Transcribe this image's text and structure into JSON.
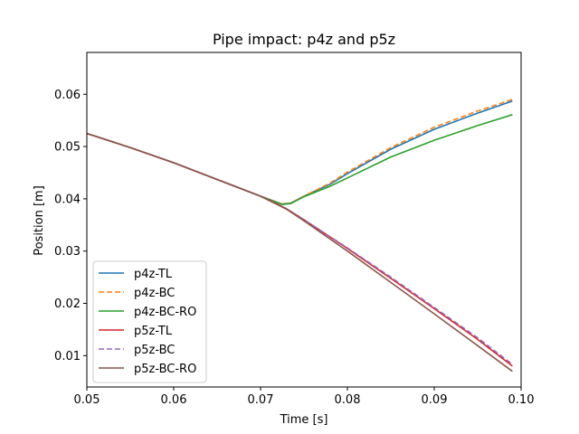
{
  "chart_data": {
    "type": "line",
    "title": "Pipe impact: p4z and p5z",
    "xlabel": "Time [s]",
    "ylabel": "Position [m]",
    "xlim": [
      0.05,
      0.1
    ],
    "ylim": [
      0.004,
      0.068
    ],
    "xticks": [
      0.05,
      0.06,
      0.07,
      0.08,
      0.09,
      0.1
    ],
    "xtick_labels": [
      "0.05",
      "0.06",
      "0.07",
      "0.08",
      "0.09",
      "0.10"
    ],
    "yticks": [
      0.01,
      0.02,
      0.03,
      0.04,
      0.05,
      0.06
    ],
    "ytick_labels": [
      "0.01",
      "0.02",
      "0.03",
      "0.04",
      "0.05",
      "0.06"
    ],
    "grid": false,
    "legend_position": "lower-left",
    "series": [
      {
        "name": "p4z-TL",
        "color": "#1f77b4",
        "dash": "solid",
        "x": [
          0.05,
          0.055,
          0.06,
          0.065,
          0.07,
          0.0725,
          0.0735,
          0.075,
          0.078,
          0.08,
          0.085,
          0.09,
          0.095,
          0.099
        ],
        "y": [
          0.0525,
          0.0498,
          0.0469,
          0.0437,
          0.0405,
          0.039,
          0.0392,
          0.0405,
          0.0428,
          0.0448,
          0.0495,
          0.0533,
          0.0564,
          0.0587
        ]
      },
      {
        "name": "p4z-BC",
        "color": "#ff7f0e",
        "dash": "dashed",
        "x": [
          0.05,
          0.055,
          0.06,
          0.065,
          0.07,
          0.0725,
          0.0735,
          0.075,
          0.078,
          0.08,
          0.085,
          0.09,
          0.095,
          0.099
        ],
        "y": [
          0.0525,
          0.0498,
          0.0469,
          0.0437,
          0.0405,
          0.039,
          0.0392,
          0.0405,
          0.043,
          0.0451,
          0.0498,
          0.0537,
          0.0568,
          0.059
        ]
      },
      {
        "name": "p4z-BC-RO",
        "color": "#2ca02c",
        "dash": "solid",
        "x": [
          0.05,
          0.055,
          0.06,
          0.065,
          0.07,
          0.0725,
          0.0735,
          0.075,
          0.078,
          0.08,
          0.085,
          0.09,
          0.095,
          0.099
        ],
        "y": [
          0.0525,
          0.0498,
          0.0469,
          0.0437,
          0.0405,
          0.0389,
          0.0391,
          0.0404,
          0.0424,
          0.044,
          0.048,
          0.0512,
          0.054,
          0.0561
        ]
      },
      {
        "name": "p5z-TL",
        "color": "#d62728",
        "dash": "solid",
        "x": [
          0.05,
          0.055,
          0.06,
          0.065,
          0.07,
          0.073,
          0.075,
          0.08,
          0.085,
          0.09,
          0.095,
          0.099
        ],
        "y": [
          0.0525,
          0.0498,
          0.0469,
          0.0437,
          0.0405,
          0.0381,
          0.036,
          0.0305,
          0.0248,
          0.019,
          0.0131,
          0.008
        ]
      },
      {
        "name": "p5z-BC",
        "color": "#9467bd",
        "dash": "dashed",
        "x": [
          0.05,
          0.055,
          0.06,
          0.065,
          0.07,
          0.073,
          0.075,
          0.08,
          0.085,
          0.09,
          0.095,
          0.099
        ],
        "y": [
          0.0525,
          0.0498,
          0.0469,
          0.0437,
          0.0405,
          0.0381,
          0.036,
          0.0306,
          0.025,
          0.0192,
          0.0134,
          0.0083
        ]
      },
      {
        "name": "p5z-BC-RO",
        "color": "#8c564b",
        "dash": "solid",
        "x": [
          0.05,
          0.055,
          0.06,
          0.065,
          0.07,
          0.073,
          0.075,
          0.08,
          0.085,
          0.09,
          0.095,
          0.099
        ],
        "y": [
          0.0525,
          0.0498,
          0.0469,
          0.0437,
          0.0405,
          0.038,
          0.0358,
          0.03,
          0.024,
          0.018,
          0.0119,
          0.007
        ]
      }
    ]
  }
}
